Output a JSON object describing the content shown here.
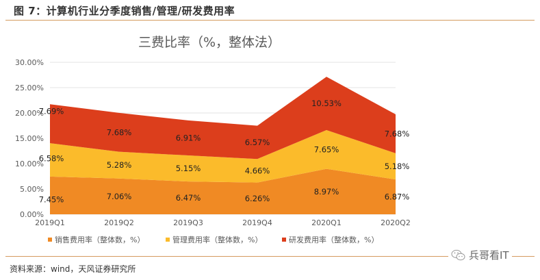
{
  "figure": {
    "title": "图 7：计算机行业分季度销售/管理/研发费用率",
    "source": "资料来源：wind，天风证券研究所",
    "watermark": "兵哥看IT",
    "watermark_icon": "wechat-icon"
  },
  "chart_data": {
    "type": "area",
    "stacked": true,
    "title": "三费比率（%，整体法）",
    "xlabel": "",
    "ylabel": "",
    "categories": [
      "2019Q1",
      "2019Q2",
      "2019Q3",
      "2019Q4",
      "2020Q1",
      "2020Q2"
    ],
    "ylim": [
      0,
      30
    ],
    "yticks": [
      0,
      5,
      10,
      15,
      20,
      25,
      30
    ],
    "ytick_labels": [
      "0.00%",
      "5.00%",
      "10.00%",
      "15.00%",
      "20.00%",
      "25.00%",
      "30.00%"
    ],
    "grid": true,
    "legend_position": "bottom",
    "series": [
      {
        "name": "销售费用率（整体数，%）",
        "color": "#f08a24",
        "values": [
          7.45,
          7.06,
          6.47,
          6.26,
          8.97,
          6.87
        ],
        "labels": [
          "7.45%",
          "7.06%",
          "6.47%",
          "6.26%",
          "8.97%",
          "6.87%"
        ]
      },
      {
        "name": "管理费用率（整体数，%）",
        "color": "#fbbb2b",
        "values": [
          6.58,
          5.28,
          5.15,
          4.66,
          7.65,
          5.18
        ],
        "labels": [
          "6.58%",
          "5.28%",
          "5.15%",
          "4.66%",
          "7.65%",
          "5.18%"
        ]
      },
      {
        "name": "研发费用率（整体数，%）",
        "color": "#dc3e1c",
        "values": [
          7.69,
          7.68,
          6.91,
          6.57,
          10.53,
          7.68
        ],
        "labels": [
          "7.69%",
          "7.68%",
          "6.91%",
          "6.57%",
          "10.53%",
          "7.68%"
        ]
      }
    ]
  }
}
